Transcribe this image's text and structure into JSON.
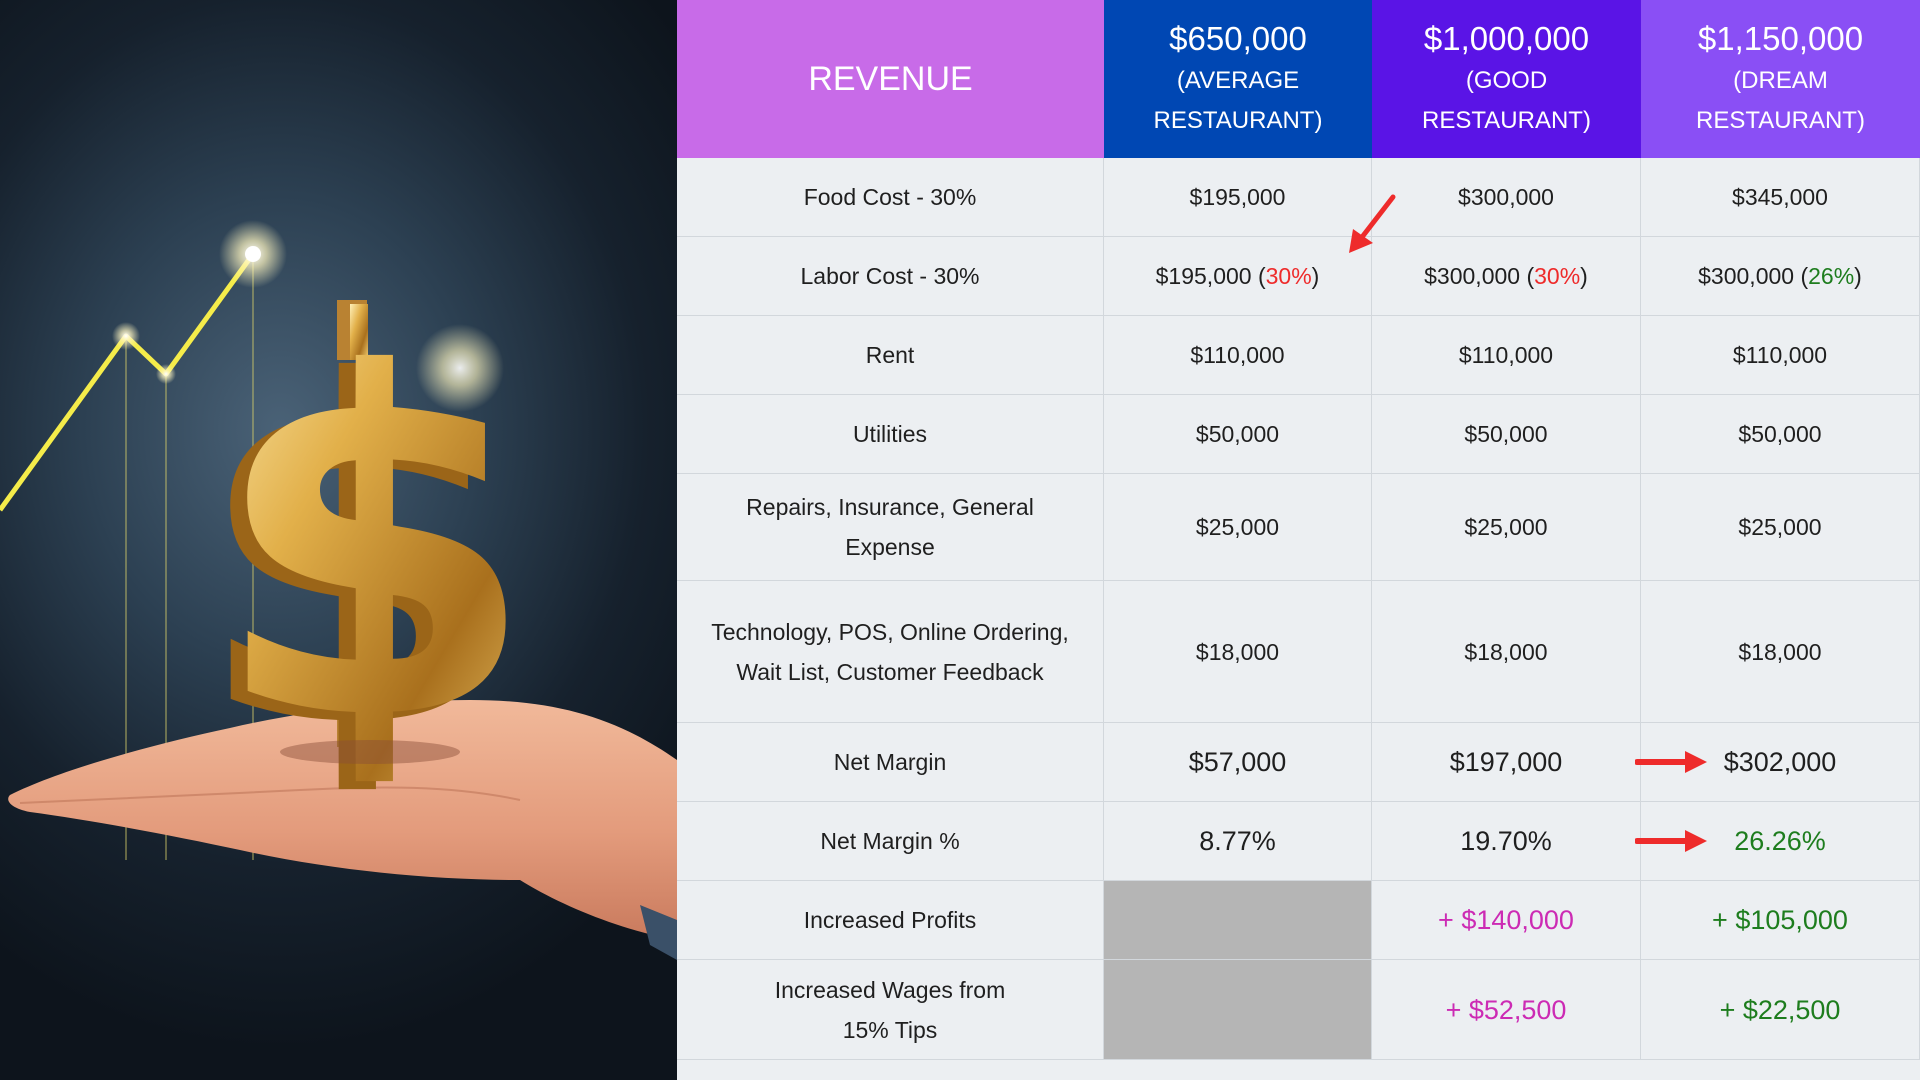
{
  "header": {
    "revenue_label": "REVENUE",
    "columns": [
      {
        "amount": "$650,000",
        "line1": "(AVERAGE",
        "line2": "RESTAURANT)",
        "color": "#0047b3"
      },
      {
        "amount": "$1,000,000",
        "line1": "(GOOD",
        "line2": "RESTAURANT)",
        "color": "#5a14e6"
      },
      {
        "amount": "$1,150,000",
        "line1": "(DREAM",
        "line2": "RESTAURANT)",
        "color": "#8a4ff5"
      }
    ],
    "revenue_color": "#c86be8"
  },
  "rows": {
    "food_cost": {
      "label": "Food Cost - 30%",
      "values": [
        "$195,000",
        "$300,000",
        "$345,000"
      ]
    },
    "labor_cost": {
      "label": "Labor Cost - 30%",
      "values": [
        {
          "amount": "$195,000 (",
          "pct": "30%",
          "close": ")"
        },
        {
          "amount": "$300,000 (",
          "pct": "30%",
          "close": ")"
        },
        {
          "amount": "$300,000 (",
          "pct": "26%",
          "close": ")"
        }
      ]
    },
    "rent": {
      "label": "Rent",
      "values": [
        "$110,000",
        "$110,000",
        "$110,000"
      ]
    },
    "utilities": {
      "label": "Utilities",
      "values": [
        "$50,000",
        "$50,000",
        "$50,000"
      ]
    },
    "repairs": {
      "label_line1": "Repairs, Insurance, General",
      "label_line2": "Expense",
      "values": [
        "$25,000",
        "$25,000",
        "$25,000"
      ]
    },
    "technology": {
      "label_line1": "Technology, POS, Online Ordering,",
      "label_line2": "Wait List, Customer Feedback",
      "values": [
        "$18,000",
        "$18,000",
        "$18,000"
      ]
    },
    "net_margin": {
      "label": "Net Margin",
      "values": [
        "$57,000",
        "$197,000",
        "$302,000"
      ]
    },
    "net_margin_pct": {
      "label": "Net Margin %",
      "values": [
        "8.77%",
        "19.70%",
        "26.26%"
      ]
    },
    "increased_profits": {
      "label": "Increased Profits",
      "values": [
        "",
        "+ $140,000",
        "+ $105,000"
      ]
    },
    "increased_wages": {
      "label_line1": "Increased Wages from",
      "label_line2": "15% Tips",
      "values": [
        "",
        "+ $52,500",
        "+ $22,500"
      ]
    }
  },
  "illustration": {
    "symbol": "$",
    "description_icon": "dollar-sign-on-hand-icon"
  }
}
